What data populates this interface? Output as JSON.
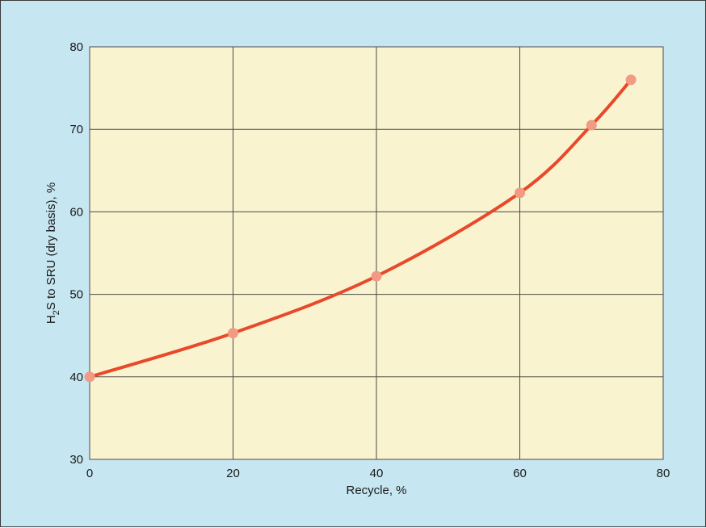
{
  "chart_data": {
    "type": "line",
    "title": "",
    "xlabel": "Recycle, %",
    "ylabel": {
      "prefix": "H",
      "subscript": "2",
      "suffix": "S to SRU (dry basis), %"
    },
    "xlim": [
      0,
      80
    ],
    "ylim": [
      30,
      80
    ],
    "x_ticks": [
      0,
      20,
      40,
      60,
      80
    ],
    "y_ticks": [
      30,
      40,
      50,
      60,
      70,
      80
    ],
    "grid": true,
    "series": [
      {
        "x": [
          0,
          20,
          40,
          60,
          70,
          75.5
        ],
        "y": [
          40,
          45.3,
          52.2,
          62.3,
          70.5,
          76
        ],
        "line_color": "#e8492b",
        "marker_color": "#f19a84"
      }
    ],
    "colors": {
      "background": "#c6e6f1",
      "plot_area": "#faf3d0",
      "grid": "#4a4a4a"
    }
  }
}
